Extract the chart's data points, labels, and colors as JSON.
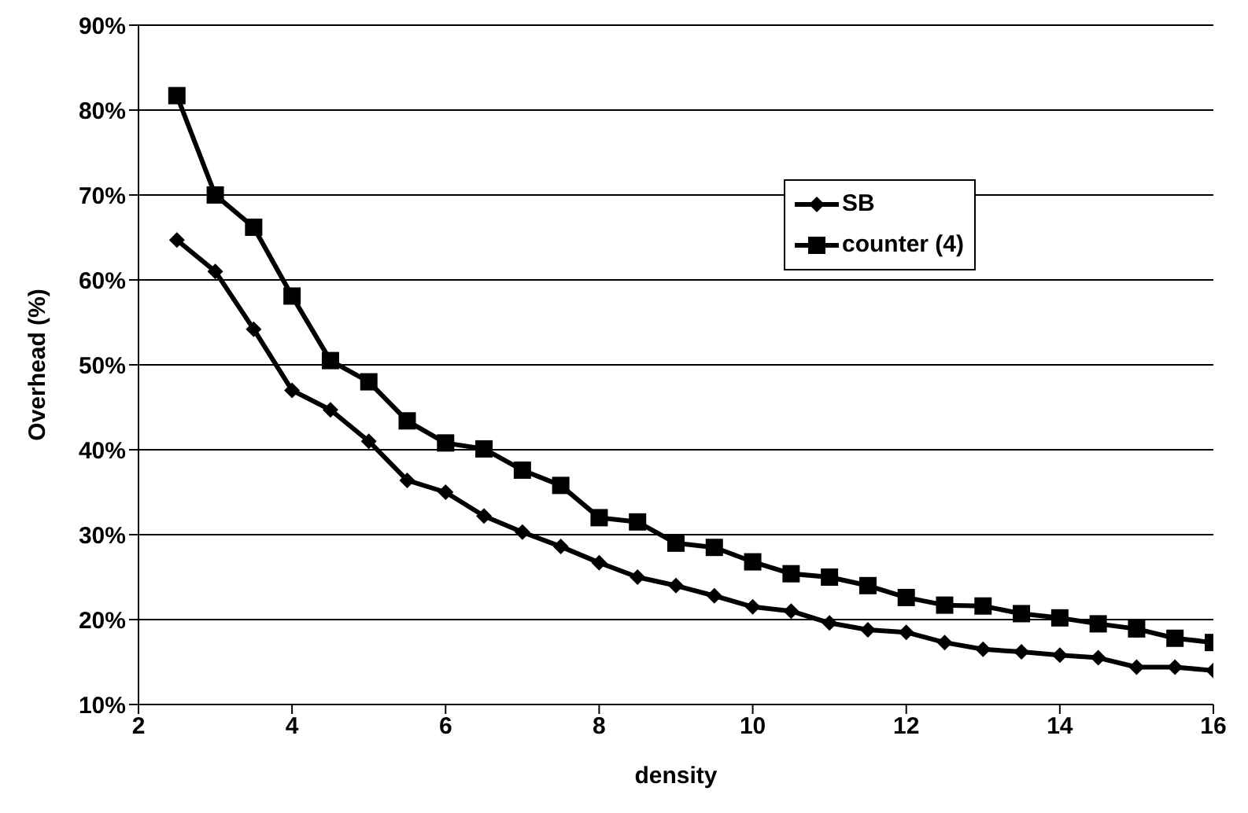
{
  "chart_data": {
    "type": "line",
    "xlabel": "density",
    "ylabel": "Overhead (%)",
    "x": [
      2.5,
      3,
      3.5,
      4,
      4.5,
      5,
      5.5,
      6,
      6.5,
      7,
      7.5,
      8,
      8.5,
      9,
      9.5,
      10,
      10.5,
      11,
      11.5,
      12,
      12.5,
      13,
      13.5,
      14,
      14.5,
      15,
      15.5,
      16
    ],
    "series": [
      {
        "name": "SB",
        "color": "#000000",
        "marker": "diamond",
        "values": [
          64.7,
          61,
          54.2,
          47,
          44.7,
          41,
          36.4,
          35,
          32.2,
          30.3,
          28.6,
          26.7,
          25,
          24,
          22.8,
          21.5,
          21,
          19.6,
          18.8,
          18.5,
          17.3,
          16.5,
          16.2,
          15.8,
          15.5,
          14.4,
          14.4,
          14
        ]
      },
      {
        "name": "counter (4)",
        "color": "#000000",
        "marker": "square",
        "values": [
          81.7,
          70,
          66.2,
          58.1,
          50.5,
          48,
          43.4,
          40.8,
          40.1,
          37.6,
          35.8,
          32,
          31.5,
          29,
          28.5,
          26.8,
          25.4,
          25,
          24,
          22.6,
          21.7,
          21.6,
          20.7,
          20.2,
          19.5,
          18.9,
          17.8,
          17.3
        ]
      }
    ],
    "xlim": [
      2,
      16
    ],
    "xticks": [
      2,
      4,
      6,
      8,
      10,
      12,
      14,
      16
    ],
    "ylim": [
      10,
      90
    ],
    "yticks": [
      {
        "value": 10,
        "label": "10%"
      },
      {
        "value": 20,
        "label": "20%"
      },
      {
        "value": 30,
        "label": "30%"
      },
      {
        "value": 40,
        "label": "40%"
      },
      {
        "value": 50,
        "label": "50%"
      },
      {
        "value": 60,
        "label": "60%"
      },
      {
        "value": 70,
        "label": "70%"
      },
      {
        "value": 80,
        "label": "80%"
      },
      {
        "value": 90,
        "label": "90%"
      }
    ],
    "grid": "y",
    "legend": "top right",
    "line_style": "solid"
  }
}
